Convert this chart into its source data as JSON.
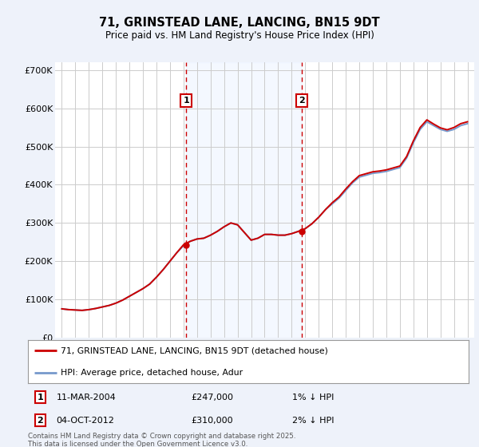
{
  "title": "71, GRINSTEAD LANE, LANCING, BN15 9DT",
  "subtitle": "Price paid vs. HM Land Registry's House Price Index (HPI)",
  "ylim": [
    0,
    720000
  ],
  "yticks": [
    0,
    100000,
    200000,
    300000,
    400000,
    500000,
    600000,
    700000
  ],
  "ytick_labels": [
    "£0",
    "£100K",
    "£200K",
    "£300K",
    "£400K",
    "£500K",
    "£600K",
    "£700K"
  ],
  "bg_color": "#eef2fa",
  "plot_bg_color": "#ffffff",
  "grid_color": "#cccccc",
  "line_color_hpi": "#7799cc",
  "line_color_price": "#cc0000",
  "marker1_date": 2004.19,
  "marker2_date": 2012.75,
  "marker1_price": 247000,
  "marker2_price": 310000,
  "marker1_label": "11-MAR-2004",
  "marker2_label": "04-OCT-2012",
  "marker1_pct": "1% ↓ HPI",
  "marker2_pct": "2% ↓ HPI",
  "legend_price_label": "71, GRINSTEAD LANE, LANCING, BN15 9DT (detached house)",
  "legend_hpi_label": "HPI: Average price, detached house, Adur",
  "footnote": "Contains HM Land Registry data © Crown copyright and database right 2025.\nThis data is licensed under the Open Government Licence v3.0.",
  "shade_color": "#dce8ff",
  "title_fontsize": 10.5,
  "subtitle_fontsize": 8.5,
  "years_hpi": [
    1995.0,
    1995.5,
    1996.0,
    1996.5,
    1997.0,
    1997.5,
    1998.0,
    1998.5,
    1999.0,
    1999.5,
    2000.0,
    2000.5,
    2001.0,
    2001.5,
    2002.0,
    2002.5,
    2003.0,
    2003.5,
    2004.0,
    2004.5,
    2005.0,
    2005.5,
    2006.0,
    2006.5,
    2007.0,
    2007.5,
    2008.0,
    2008.5,
    2009.0,
    2009.5,
    2010.0,
    2010.5,
    2011.0,
    2011.5,
    2012.0,
    2012.5,
    2013.0,
    2013.5,
    2014.0,
    2014.5,
    2015.0,
    2015.5,
    2016.0,
    2016.5,
    2017.0,
    2017.5,
    2018.0,
    2018.5,
    2019.0,
    2019.5,
    2020.0,
    2020.5,
    2021.0,
    2021.5,
    2022.0,
    2022.5,
    2023.0,
    2023.5,
    2024.0,
    2024.5,
    2025.0
  ],
  "hpi_values": [
    75000,
    73000,
    72000,
    71000,
    73000,
    76000,
    80000,
    84000,
    90000,
    98000,
    108000,
    118000,
    128000,
    140000,
    158000,
    178000,
    200000,
    222000,
    240000,
    252000,
    258000,
    260000,
    268000,
    278000,
    290000,
    300000,
    295000,
    275000,
    255000,
    260000,
    270000,
    270000,
    268000,
    268000,
    272000,
    278000,
    285000,
    298000,
    315000,
    335000,
    350000,
    365000,
    385000,
    405000,
    420000,
    425000,
    430000,
    432000,
    435000,
    440000,
    445000,
    470000,
    510000,
    545000,
    565000,
    555000,
    545000,
    540000,
    545000,
    555000,
    560000
  ],
  "price_line": [
    75000,
    73000,
    72000,
    71000,
    73000,
    76000,
    80000,
    84000,
    90000,
    98000,
    108000,
    118000,
    128000,
    140000,
    158000,
    178000,
    200000,
    222000,
    243000,
    252000,
    258000,
    260000,
    268000,
    278000,
    290000,
    300000,
    295000,
    275000,
    255000,
    260000,
    270000,
    270000,
    268000,
    268000,
    272000,
    278000,
    285000,
    298000,
    315000,
    335000,
    353000,
    368000,
    389000,
    408000,
    424000,
    429000,
    434000,
    436000,
    439000,
    444000,
    449000,
    474000,
    515000,
    550000,
    570000,
    559000,
    549000,
    544000,
    550000,
    560000,
    565000
  ]
}
